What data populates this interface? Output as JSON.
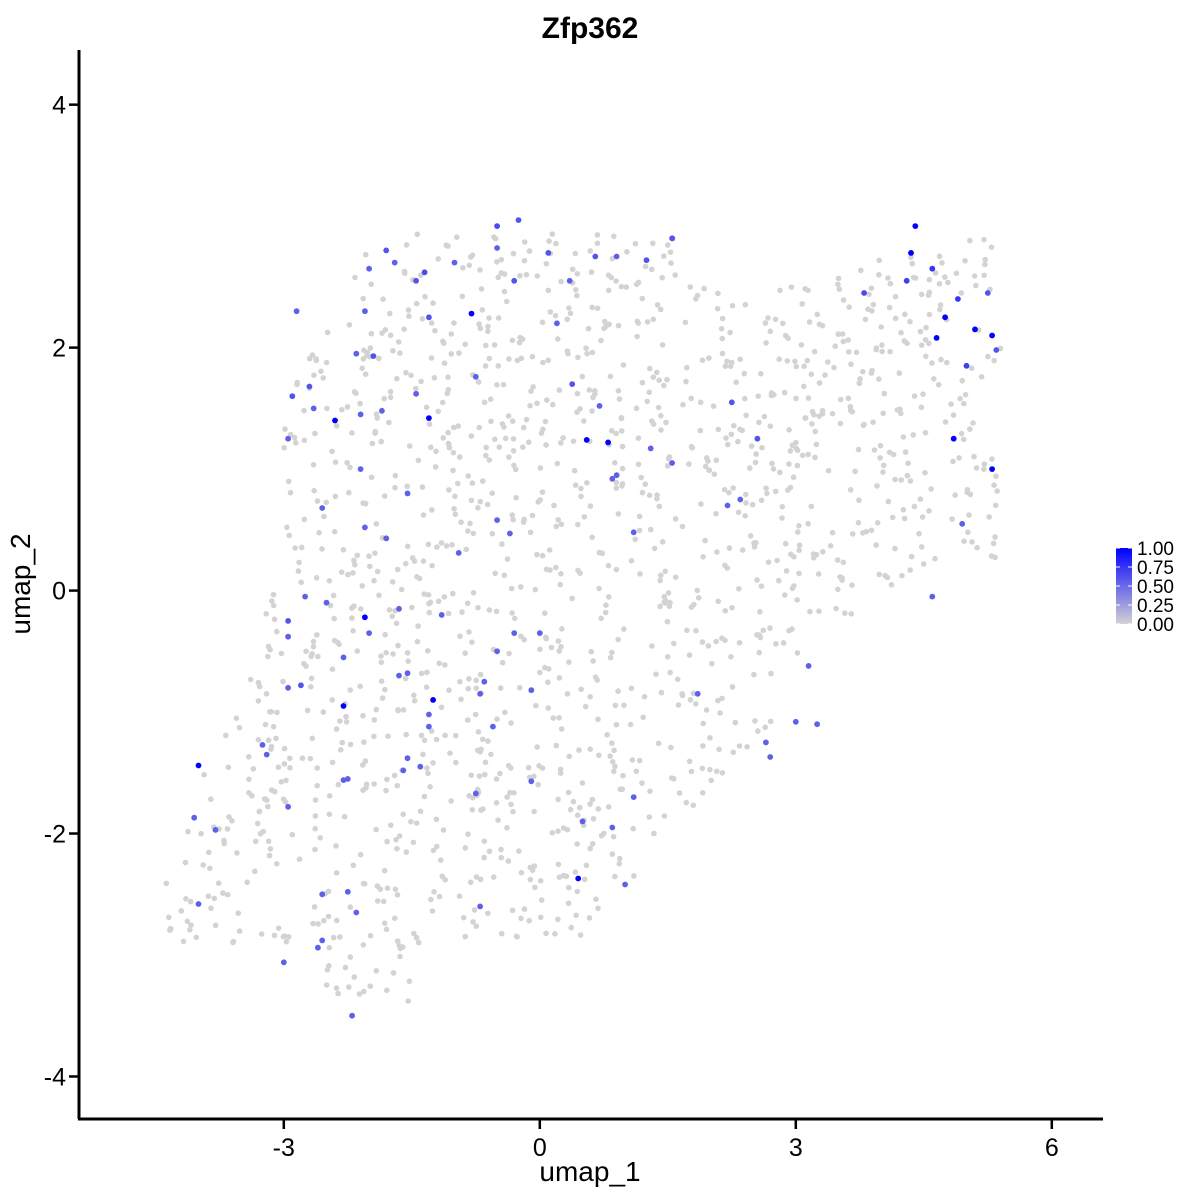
{
  "chart_data": {
    "type": "scatter",
    "title": "Zfp362",
    "xlabel": "umap_1",
    "ylabel": "umap_2",
    "xlim": [
      -5.4,
      6.6
    ],
    "ylim": [
      -4.35,
      4.45
    ],
    "x_ticks": [
      -3,
      0,
      3,
      6
    ],
    "y_ticks": [
      -4,
      -2,
      0,
      2,
      4
    ],
    "x_tick_labels": [
      "-3",
      "0",
      "3",
      "6"
    ],
    "y_tick_labels": [
      "-4",
      "-2",
      "0",
      "2",
      "4"
    ],
    "grid": false,
    "legend": {
      "placement": "right",
      "type": "colorbar",
      "labels": [
        "1.00",
        "0.75",
        "0.50",
        "0.25",
        "0.00"
      ],
      "values": [
        1.0,
        0.75,
        0.5,
        0.25,
        0.0
      ],
      "low_color": "#d3d3d3",
      "high_color": "#0000ff"
    },
    "background_color": "#d3d3d3",
    "expressing_points": [
      {
        "x": 4.4,
        "y": 3.0,
        "v": 1.0
      },
      {
        "x": 4.35,
        "y": 2.78,
        "v": 1.0
      },
      {
        "x": 4.75,
        "y": 2.25,
        "v": 1.0
      },
      {
        "x": 4.65,
        "y": 2.08,
        "v": 1.0
      },
      {
        "x": 5.1,
        "y": 2.15,
        "v": 1.0
      },
      {
        "x": 5.3,
        "y": 2.1,
        "v": 1.0
      },
      {
        "x": 4.85,
        "y": 1.25,
        "v": 1.0
      },
      {
        "x": 5.3,
        "y": 1.0,
        "v": 1.0
      },
      {
        "x": -0.8,
        "y": 2.28,
        "v": 1.0
      },
      {
        "x": -2.4,
        "y": 1.4,
        "v": 1.0
      },
      {
        "x": -1.3,
        "y": 1.42,
        "v": 1.0
      },
      {
        "x": 0.55,
        "y": 1.24,
        "v": 1.0
      },
      {
        "x": 0.8,
        "y": 1.22,
        "v": 1.0
      },
      {
        "x": -2.05,
        "y": -0.22,
        "v": 1.0
      },
      {
        "x": -2.3,
        "y": -0.95,
        "v": 1.0
      },
      {
        "x": -1.25,
        "y": -0.9,
        "v": 1.0
      },
      {
        "x": -4.0,
        "y": -1.44,
        "v": 1.0
      },
      {
        "x": 0.45,
        "y": -2.37,
        "v": 1.0
      },
      {
        "x": 4.6,
        "y": 2.65,
        "v": 0.75
      },
      {
        "x": 4.9,
        "y": 2.4,
        "v": 0.75
      },
      {
        "x": 5.0,
        "y": 1.85,
        "v": 0.7
      },
      {
        "x": 4.3,
        "y": 2.55,
        "v": 0.7
      },
      {
        "x": 3.8,
        "y": 2.45,
        "v": 0.65
      },
      {
        "x": 5.25,
        "y": 2.45,
        "v": 0.6
      },
      {
        "x": 5.35,
        "y": 1.98,
        "v": 0.6
      },
      {
        "x": 4.95,
        "y": 0.55,
        "v": 0.55
      },
      {
        "x": 4.6,
        "y": -0.05,
        "v": 0.55
      },
      {
        "x": 2.25,
        "y": 1.55,
        "v": 0.6
      },
      {
        "x": 2.55,
        "y": 1.25,
        "v": 0.6
      },
      {
        "x": 1.55,
        "y": 2.9,
        "v": 0.6
      },
      {
        "x": 1.25,
        "y": 2.72,
        "v": 0.6
      },
      {
        "x": 0.9,
        "y": 2.75,
        "v": 0.55
      },
      {
        "x": 0.65,
        "y": 2.75,
        "v": 0.6
      },
      {
        "x": 0.35,
        "y": 2.55,
        "v": 0.55
      },
      {
        "x": 0.1,
        "y": 2.78,
        "v": 0.6
      },
      {
        "x": -0.25,
        "y": 3.05,
        "v": 0.6
      },
      {
        "x": -0.5,
        "y": 3.0,
        "v": 0.65
      },
      {
        "x": -0.5,
        "y": 2.82,
        "v": 0.55
      },
      {
        "x": -0.3,
        "y": 2.55,
        "v": 0.6
      },
      {
        "x": -1.0,
        "y": 2.7,
        "v": 0.55
      },
      {
        "x": -1.35,
        "y": 2.62,
        "v": 0.65
      },
      {
        "x": -1.45,
        "y": 2.55,
        "v": 0.6
      },
      {
        "x": -1.3,
        "y": 2.25,
        "v": 0.6
      },
      {
        "x": -1.7,
        "y": 2.7,
        "v": 0.55
      },
      {
        "x": -1.8,
        "y": 2.8,
        "v": 0.6
      },
      {
        "x": -2.0,
        "y": 2.65,
        "v": 0.55
      },
      {
        "x": -2.05,
        "y": 2.3,
        "v": 0.55
      },
      {
        "x": -1.95,
        "y": 1.93,
        "v": 0.6
      },
      {
        "x": -2.15,
        "y": 1.95,
        "v": 0.55
      },
      {
        "x": -2.7,
        "y": 1.68,
        "v": 0.6
      },
      {
        "x": -2.9,
        "y": 1.6,
        "v": 0.6
      },
      {
        "x": -2.65,
        "y": 1.5,
        "v": 0.55
      },
      {
        "x": -2.95,
        "y": 1.25,
        "v": 0.55
      },
      {
        "x": -2.1,
        "y": 1.45,
        "v": 0.55
      },
      {
        "x": -1.85,
        "y": 1.48,
        "v": 0.55
      },
      {
        "x": -1.45,
        "y": 1.62,
        "v": 0.55
      },
      {
        "x": -0.75,
        "y": 1.76,
        "v": 0.55
      },
      {
        "x": 0.38,
        "y": 1.7,
        "v": 0.6
      },
      {
        "x": 0.2,
        "y": 2.2,
        "v": 0.55
      },
      {
        "x": -0.5,
        "y": 0.58,
        "v": 0.55
      },
      {
        "x": -0.35,
        "y": 0.47,
        "v": 0.55
      },
      {
        "x": -0.95,
        "y": 0.31,
        "v": 0.55
      },
      {
        "x": -2.1,
        "y": 1.0,
        "v": 0.55
      },
      {
        "x": -1.55,
        "y": 0.8,
        "v": 0.55
      },
      {
        "x": -2.05,
        "y": 0.52,
        "v": 0.55
      },
      {
        "x": -1.8,
        "y": 0.43,
        "v": 0.55
      },
      {
        "x": -2.55,
        "y": 0.68,
        "v": 0.55
      },
      {
        "x": -2.5,
        "y": -0.1,
        "v": 0.55
      },
      {
        "x": -2.75,
        "y": -0.05,
        "v": 0.55
      },
      {
        "x": -2.95,
        "y": -0.25,
        "v": 0.6
      },
      {
        "x": -2.95,
        "y": -0.38,
        "v": 0.55
      },
      {
        "x": -2.0,
        "y": -0.35,
        "v": 0.55
      },
      {
        "x": -1.65,
        "y": -0.15,
        "v": 0.55
      },
      {
        "x": -1.15,
        "y": -0.2,
        "v": 0.55
      },
      {
        "x": -0.5,
        "y": -0.5,
        "v": 0.55
      },
      {
        "x": -0.3,
        "y": -0.35,
        "v": 0.55
      },
      {
        "x": 0.0,
        "y": -0.35,
        "v": 0.55
      },
      {
        "x": -1.55,
        "y": -0.68,
        "v": 0.55
      },
      {
        "x": -1.65,
        "y": -0.7,
        "v": 0.55
      },
      {
        "x": -2.3,
        "y": -0.55,
        "v": 0.55
      },
      {
        "x": -2.95,
        "y": -0.8,
        "v": 0.55
      },
      {
        "x": -2.8,
        "y": -0.78,
        "v": 0.6
      },
      {
        "x": -0.65,
        "y": -0.75,
        "v": 0.55
      },
      {
        "x": -0.7,
        "y": -0.85,
        "v": 0.55
      },
      {
        "x": -0.1,
        "y": -0.82,
        "v": 0.55
      },
      {
        "x": -1.3,
        "y": -1.02,
        "v": 0.55
      },
      {
        "x": -1.3,
        "y": -1.12,
        "v": 0.55
      },
      {
        "x": -0.55,
        "y": -1.12,
        "v": 0.55
      },
      {
        "x": -1.4,
        "y": -1.45,
        "v": 0.55
      },
      {
        "x": -1.55,
        "y": -1.38,
        "v": 0.55
      },
      {
        "x": -1.6,
        "y": -1.48,
        "v": 0.55
      },
      {
        "x": -2.25,
        "y": -1.55,
        "v": 0.55
      },
      {
        "x": -2.3,
        "y": -1.56,
        "v": 0.55
      },
      {
        "x": -3.25,
        "y": -1.27,
        "v": 0.55
      },
      {
        "x": -3.2,
        "y": -1.35,
        "v": 0.55
      },
      {
        "x": -2.95,
        "y": -1.78,
        "v": 0.55
      },
      {
        "x": -4.05,
        "y": -1.87,
        "v": 0.55
      },
      {
        "x": -3.8,
        "y": -1.97,
        "v": 0.55
      },
      {
        "x": -4.0,
        "y": -2.58,
        "v": 0.55
      },
      {
        "x": -3.0,
        "y": -3.06,
        "v": 0.55
      },
      {
        "x": -2.55,
        "y": -2.88,
        "v": 0.55
      },
      {
        "x": -2.6,
        "y": -2.94,
        "v": 0.55
      },
      {
        "x": -2.55,
        "y": -2.5,
        "v": 0.55
      },
      {
        "x": -2.25,
        "y": -2.48,
        "v": 0.55
      },
      {
        "x": -2.15,
        "y": -2.65,
        "v": 0.55
      },
      {
        "x": -2.2,
        "y": -3.5,
        "v": 0.55
      },
      {
        "x": -0.75,
        "y": -1.67,
        "v": 0.55
      },
      {
        "x": -0.1,
        "y": -1.57,
        "v": 0.55
      },
      {
        "x": 0.5,
        "y": -1.9,
        "v": 0.55
      },
      {
        "x": 0.85,
        "y": -1.95,
        "v": 0.55
      },
      {
        "x": 1.1,
        "y": -1.7,
        "v": 0.55
      },
      {
        "x": 1.0,
        "y": -2.42,
        "v": 0.55
      },
      {
        "x": -0.7,
        "y": -2.6,
        "v": 0.55
      },
      {
        "x": 1.1,
        "y": 0.48,
        "v": 0.55
      },
      {
        "x": 0.85,
        "y": 0.92,
        "v": 0.55
      },
      {
        "x": 0.9,
        "y": 0.95,
        "v": 0.55
      },
      {
        "x": 1.3,
        "y": 1.17,
        "v": 0.55
      },
      {
        "x": 1.55,
        "y": 1.05,
        "v": 0.55
      },
      {
        "x": 2.2,
        "y": 0.7,
        "v": 0.55
      },
      {
        "x": 2.35,
        "y": 0.75,
        "v": 0.55
      },
      {
        "x": 1.85,
        "y": -0.85,
        "v": 0.55
      },
      {
        "x": 3.15,
        "y": -0.62,
        "v": 0.55
      },
      {
        "x": 3.0,
        "y": -1.08,
        "v": 0.55
      },
      {
        "x": 3.25,
        "y": -1.1,
        "v": 0.55
      },
      {
        "x": 2.65,
        "y": -1.25,
        "v": 0.55
      },
      {
        "x": 2.7,
        "y": -1.37,
        "v": 0.55
      },
      {
        "x": 0.7,
        "y": 1.52,
        "v": 0.55
      },
      {
        "x": -2.85,
        "y": 2.3,
        "v": 0.55
      }
    ]
  }
}
